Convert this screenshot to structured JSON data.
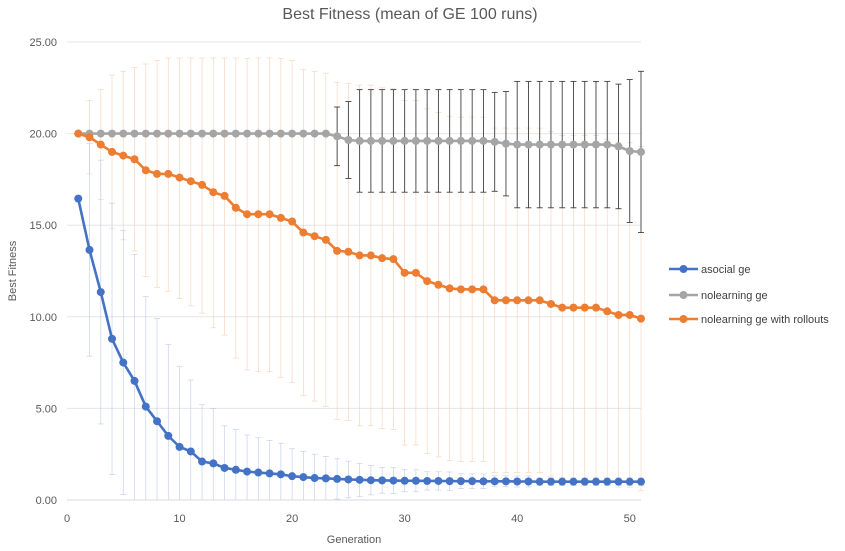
{
  "chart_data": {
    "type": "line",
    "title": "Best Fitness (mean of GE 100 runs)",
    "xlabel": "Generation",
    "ylabel": "Best Fitness",
    "xlim": [
      0,
      51
    ],
    "ylim": [
      0,
      25
    ],
    "x_ticks": [
      "0",
      "10",
      "20",
      "30",
      "40",
      "50"
    ],
    "y_ticks": [
      "0.00",
      "5.00",
      "10.00",
      "15.00",
      "20.00",
      "25.00"
    ],
    "grid": "horizontal",
    "legend_position": "right",
    "x": [
      1,
      2,
      3,
      4,
      5,
      6,
      7,
      8,
      9,
      10,
      11,
      12,
      13,
      14,
      15,
      16,
      17,
      18,
      19,
      20,
      21,
      22,
      23,
      24,
      25,
      26,
      27,
      28,
      29,
      30,
      31,
      32,
      33,
      34,
      35,
      36,
      37,
      38,
      39,
      40,
      41,
      42,
      43,
      44,
      45,
      46,
      47,
      48,
      49,
      50,
      51
    ],
    "series": [
      {
        "name": "asocial ge",
        "color": "#4472c4",
        "values": [
          16.45,
          13.65,
          11.35,
          8.8,
          7.5,
          6.5,
          5.1,
          4.3,
          3.5,
          2.9,
          2.65,
          2.1,
          2.0,
          1.75,
          1.65,
          1.55,
          1.5,
          1.45,
          1.4,
          1.3,
          1.25,
          1.2,
          1.18,
          1.15,
          1.12,
          1.1,
          1.08,
          1.07,
          1.06,
          1.05,
          1.05,
          1.04,
          1.04,
          1.03,
          1.03,
          1.03,
          1.02,
          1.02,
          1.02,
          1.01,
          1.01,
          1.0,
          1.0,
          1.0,
          1.0,
          1.0,
          1.0,
          1.0,
          1.0,
          1.0,
          1.0
        ],
        "error": [
          null,
          5.8,
          7.2,
          7.4,
          7.2,
          6.9,
          6.0,
          5.6,
          5.0,
          4.4,
          3.9,
          3.1,
          3.0,
          2.3,
          2.2,
          2.0,
          1.9,
          1.8,
          1.7,
          1.5,
          1.4,
          1.3,
          1.2,
          1.1,
          1.0,
          0.9,
          0.8,
          0.7,
          0.7,
          0.6,
          0.6,
          0.5,
          0.5,
          0.5,
          0.4,
          0.4,
          0.4,
          0.3,
          0.3,
          0.3,
          0.3,
          0.2,
          0.2,
          0.2,
          0.2,
          0.2,
          0.2,
          0.2,
          0.2,
          0.2,
          0.2
        ]
      },
      {
        "name": "nolearning ge",
        "color": "#a5a5a5",
        "values": [
          20,
          20,
          20,
          20,
          20,
          20,
          20,
          20,
          20,
          20,
          20,
          20,
          20,
          20,
          20,
          20,
          20,
          20,
          20,
          20,
          20,
          20,
          20,
          19.85,
          19.65,
          19.6,
          19.6,
          19.6,
          19.6,
          19.6,
          19.6,
          19.6,
          19.6,
          19.6,
          19.6,
          19.6,
          19.6,
          19.55,
          19.45,
          19.4,
          19.4,
          19.4,
          19.4,
          19.4,
          19.4,
          19.4,
          19.4,
          19.4,
          19.3,
          19.05,
          19.0
        ],
        "error": [
          null,
          0,
          0,
          0,
          0,
          0,
          0,
          0,
          0,
          0,
          0,
          0,
          0,
          0,
          0,
          0,
          0,
          0,
          0,
          0,
          0,
          0,
          0,
          1.6,
          2.1,
          2.8,
          2.8,
          2.8,
          2.8,
          2.8,
          2.8,
          2.8,
          2.8,
          2.8,
          2.8,
          2.8,
          2.8,
          2.7,
          2.85,
          3.45,
          3.45,
          3.45,
          3.45,
          3.45,
          3.45,
          3.45,
          3.45,
          3.45,
          3.4,
          3.9,
          4.4
        ]
      },
      {
        "name": "nolearning ge with rollouts",
        "color": "#ed7d31",
        "values": [
          20,
          19.8,
          19.4,
          19.0,
          18.8,
          18.6,
          18.0,
          17.8,
          17.8,
          17.6,
          17.4,
          17.2,
          16.8,
          16.6,
          15.95,
          15.6,
          15.6,
          15.6,
          15.4,
          15.2,
          14.6,
          14.4,
          14.2,
          13.6,
          13.55,
          13.35,
          13.35,
          13.2,
          13.15,
          12.4,
          12.4,
          11.95,
          11.75,
          11.55,
          11.5,
          11.5,
          11.5,
          10.9,
          10.9,
          10.9,
          10.9,
          10.9,
          10.7,
          10.5,
          10.5,
          10.5,
          10.5,
          10.3,
          10.1,
          10.1,
          9.9
        ],
        "error": [
          null,
          2.0,
          3.0,
          4.2,
          4.6,
          5.0,
          5.8,
          6.2,
          6.4,
          6.6,
          6.8,
          7.0,
          7.4,
          7.6,
          8.2,
          8.5,
          8.6,
          8.6,
          8.7,
          8.8,
          8.9,
          9.0,
          9.1,
          9.2,
          9.2,
          9.3,
          9.3,
          9.3,
          9.3,
          9.4,
          9.4,
          9.4,
          9.4,
          9.4,
          9.4,
          9.4,
          9.4,
          9.4,
          9.4,
          9.4,
          9.4,
          9.4,
          9.4,
          9.4,
          9.4,
          9.4,
          9.4,
          9.4,
          9.4,
          9.4,
          9.4
        ]
      }
    ]
  }
}
